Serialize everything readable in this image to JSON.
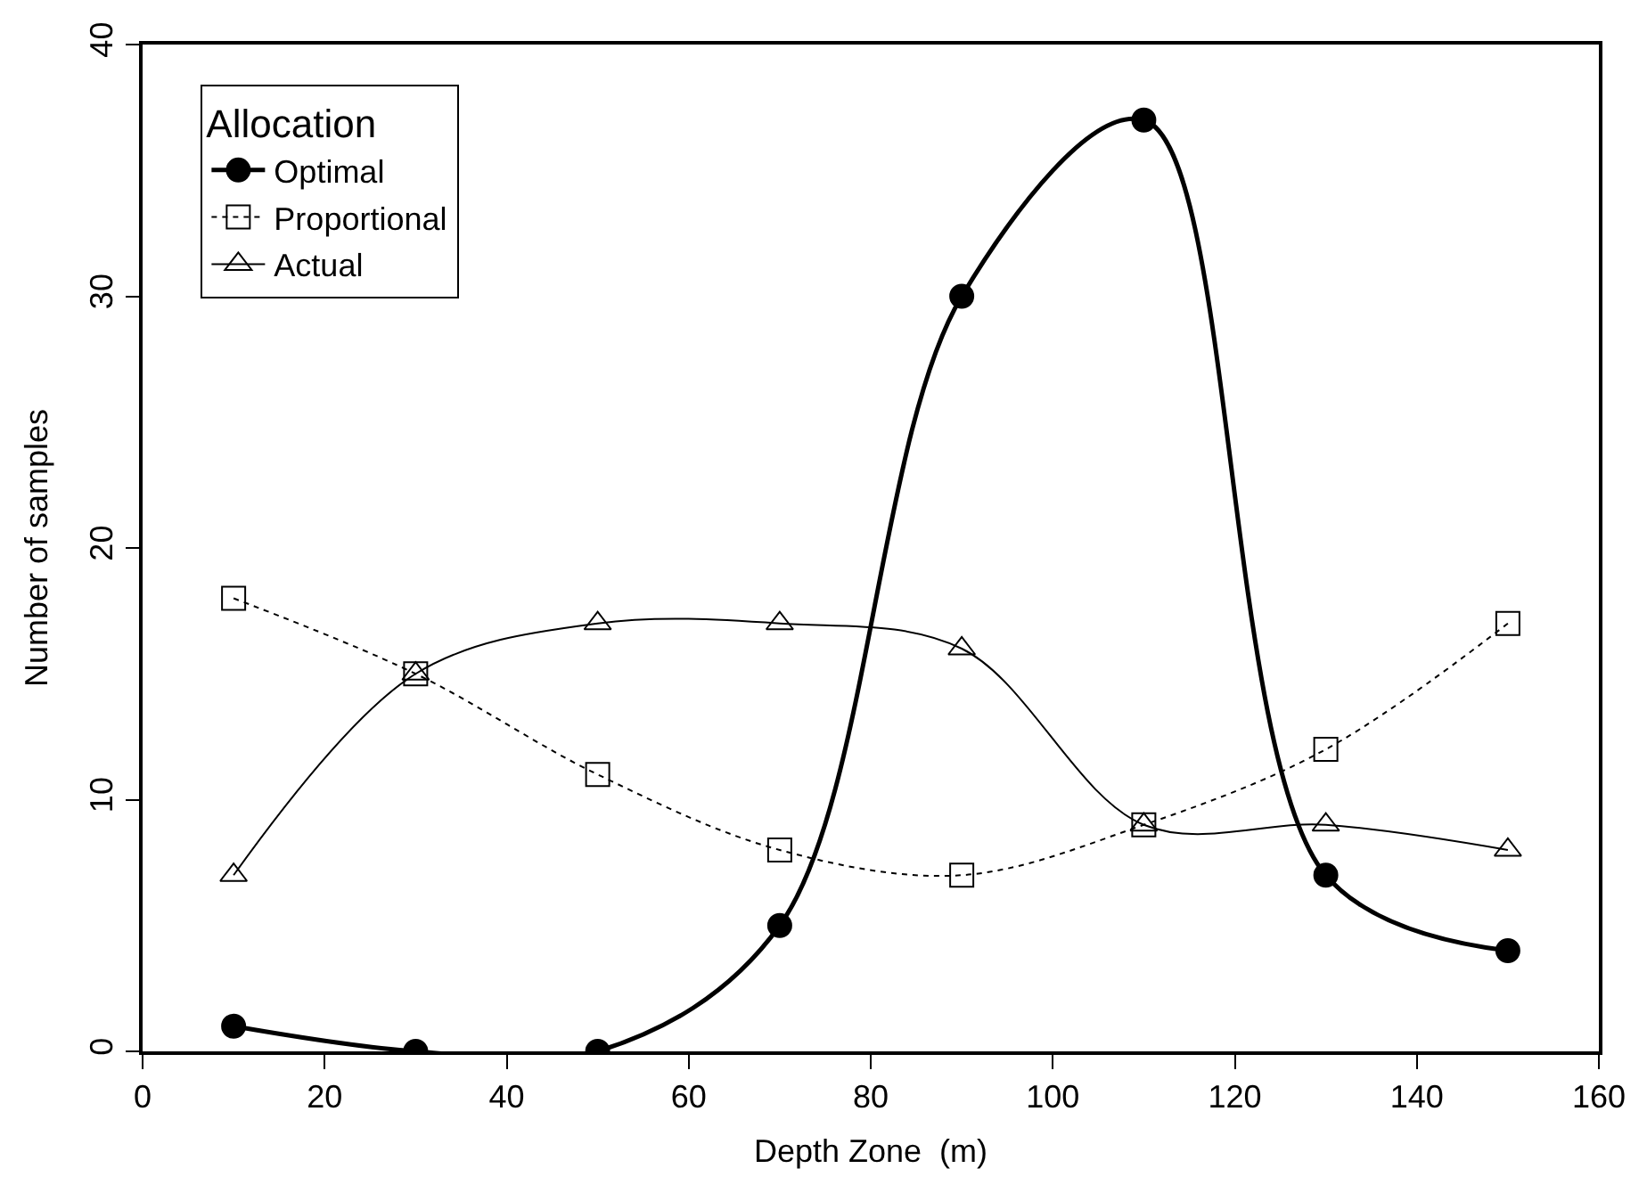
{
  "chart_data": {
    "type": "line",
    "xlabel": "Depth Zone  (m)",
    "ylabel": "Number of samples",
    "legend_title": "Allocation",
    "legend": "top left",
    "x": [
      10,
      30,
      50,
      70,
      90,
      110,
      130,
      150
    ],
    "xlim": [
      0,
      160
    ],
    "xticks": [
      0,
      20,
      40,
      60,
      80,
      100,
      120,
      140,
      160
    ],
    "ylim": [
      0,
      40
    ],
    "yticks": [
      0,
      10,
      20,
      30,
      40
    ],
    "series": [
      {
        "name": "Optimal",
        "color": "#000000",
        "values": [
          1,
          0,
          0,
          5,
          30,
          37,
          7,
          4
        ],
        "marker": "circle",
        "line_style": "solid"
      },
      {
        "name": "Proportional",
        "color": "#000000",
        "values": [
          18,
          15,
          11,
          8,
          7,
          9,
          12,
          17
        ],
        "marker": "square",
        "line_style": "dotted"
      },
      {
        "name": "Actual",
        "color": "#000000",
        "values": [
          7,
          15,
          17,
          17,
          16,
          9,
          9,
          8
        ],
        "marker": "triangle",
        "line_style": "solid"
      }
    ]
  }
}
